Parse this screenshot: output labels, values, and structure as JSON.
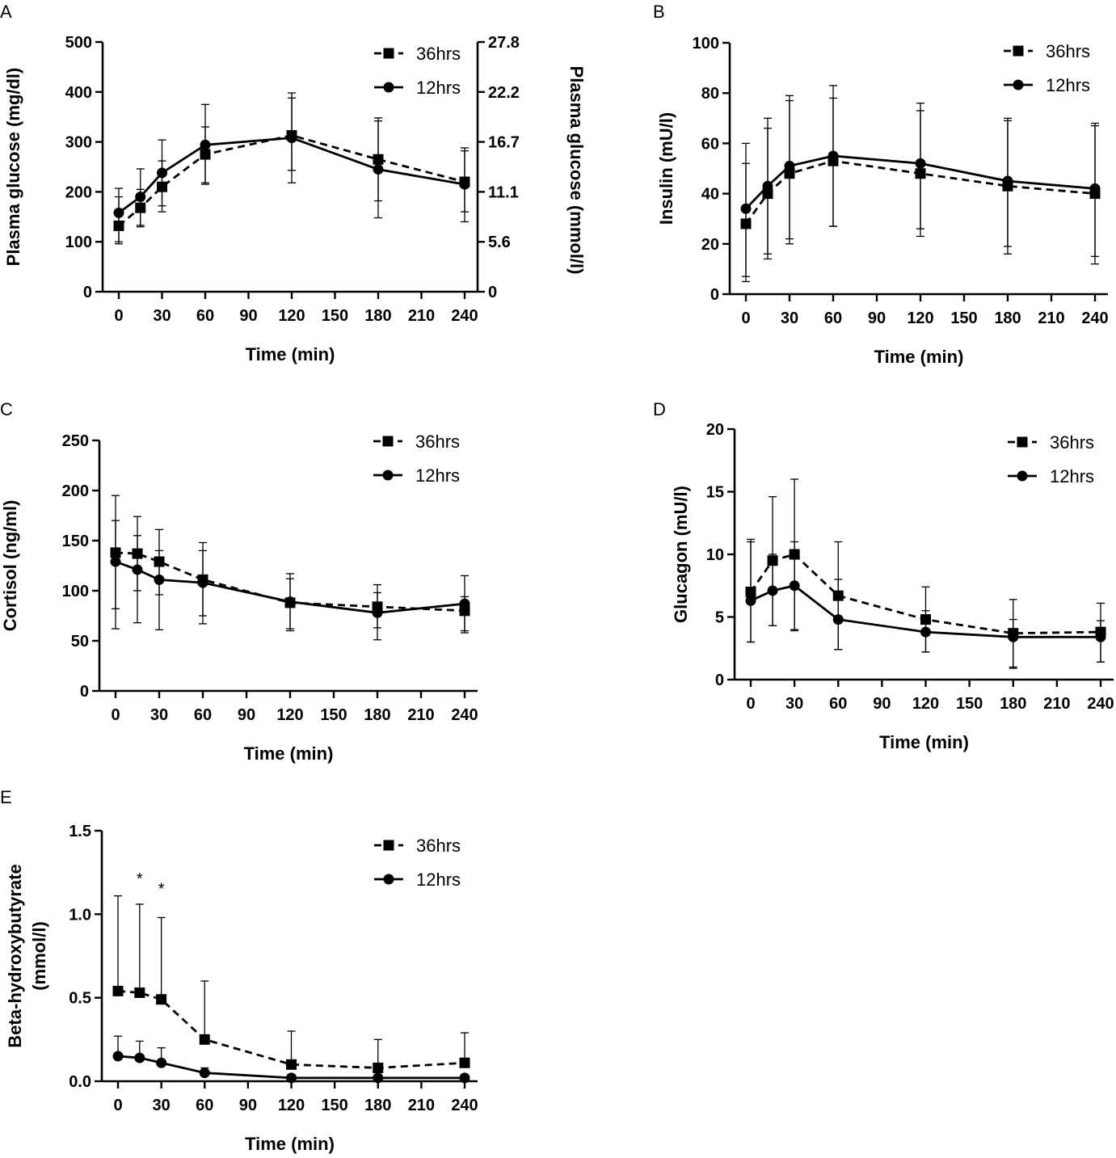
{
  "chart_data": [
    {
      "id": "A",
      "panel_label": "A",
      "type": "line",
      "xlabel": "Time (min)",
      "ylabel": "Plasma glucose (mg/dl)",
      "y2label": "Plasma glucose (mmol/l)",
      "xlim": [
        0,
        240
      ],
      "ylim": [
        0,
        500
      ],
      "xticks": [
        0,
        30,
        60,
        90,
        120,
        150,
        180,
        210,
        240
      ],
      "yticks": [
        0,
        100,
        200,
        300,
        400,
        500
      ],
      "y2ticks": [
        "0",
        "5.6",
        "11.1",
        "16.7",
        "22.2",
        "27.8"
      ],
      "legend_position": "top-right",
      "series": [
        {
          "name": "36hrs",
          "marker": "square",
          "line": "dashed",
          "x": [
            0,
            15,
            30,
            60,
            120,
            180,
            240
          ],
          "values": [
            132,
            168,
            210,
            275,
            313,
            265,
            220
          ],
          "err_upper": [
            190,
            205,
            262,
            330,
            398,
            348,
            288
          ],
          "err_lower": [
            100,
            130,
            160,
            215,
            218,
            148,
            140
          ]
        },
        {
          "name": "12hrs",
          "marker": "circle",
          "line": "solid",
          "x": [
            0,
            15,
            30,
            60,
            120,
            180,
            240
          ],
          "values": [
            158,
            190,
            238,
            294,
            308,
            245,
            215
          ],
          "err_upper": [
            207,
            246,
            304,
            375,
            388,
            342,
            282
          ],
          "err_lower": [
            96,
            133,
            172,
            218,
            243,
            182,
            160
          ]
        }
      ],
      "annotations": []
    },
    {
      "id": "B",
      "panel_label": "B",
      "type": "line",
      "xlabel": "Time (min)",
      "ylabel": "Insulin (mU/l)",
      "xlim": [
        0,
        240
      ],
      "ylim": [
        0,
        100
      ],
      "xticks": [
        0,
        30,
        60,
        90,
        120,
        150,
        180,
        210,
        240
      ],
      "yticks": [
        0,
        20,
        40,
        60,
        80,
        100
      ],
      "legend_position": "top-right",
      "series": [
        {
          "name": "36hrs",
          "marker": "square",
          "line": "dashed",
          "x": [
            0,
            15,
            30,
            60,
            120,
            180,
            240
          ],
          "values": [
            28,
            40,
            48,
            53,
            48,
            43,
            40
          ],
          "err_upper": [
            52,
            66,
            77,
            78,
            73,
            69,
            67
          ],
          "err_lower": [
            7,
            16,
            20,
            27,
            23,
            16,
            12
          ]
        },
        {
          "name": "12hrs",
          "marker": "circle",
          "line": "solid",
          "x": [
            0,
            15,
            30,
            60,
            120,
            180,
            240
          ],
          "values": [
            34,
            43,
            51,
            55,
            52,
            45,
            42
          ],
          "err_upper": [
            60,
            70,
            79,
            83,
            76,
            70,
            68
          ],
          "err_lower": [
            5,
            14,
            22,
            27,
            26,
            19,
            15
          ]
        }
      ],
      "annotations": []
    },
    {
      "id": "C",
      "panel_label": "C",
      "type": "line",
      "xlabel": "Time (min)",
      "ylabel": "Cortisol (ng/ml)",
      "xlim": [
        0,
        240
      ],
      "ylim": [
        0,
        250
      ],
      "xticks": [
        0,
        30,
        60,
        90,
        120,
        150,
        180,
        210,
        240
      ],
      "yticks": [
        0,
        50,
        100,
        150,
        200,
        250
      ],
      "legend_position": "top-right",
      "series": [
        {
          "name": "36hrs",
          "marker": "square",
          "line": "dashed",
          "x": [
            0,
            15,
            30,
            60,
            120,
            180,
            240
          ],
          "values": [
            138,
            137,
            129,
            111,
            88,
            84,
            80
          ],
          "err_upper": [
            195,
            174,
            161,
            148,
            117,
            106,
            94
          ],
          "err_lower": [
            82,
            100,
            96,
            75,
            60,
            63,
            58
          ]
        },
        {
          "name": "12hrs",
          "marker": "circle",
          "line": "solid",
          "x": [
            0,
            15,
            30,
            60,
            120,
            180,
            240
          ],
          "values": [
            129,
            121,
            111,
            108,
            89,
            78,
            87
          ],
          "err_upper": [
            170,
            155,
            140,
            140,
            112,
            98,
            115
          ],
          "err_lower": [
            62,
            68,
            61,
            67,
            62,
            51,
            60
          ]
        }
      ],
      "annotations": []
    },
    {
      "id": "D",
      "panel_label": "D",
      "type": "line",
      "xlabel": "Time (min)",
      "ylabel": "Glucagon (mU/l)",
      "xlim": [
        0,
        240
      ],
      "ylim": [
        0,
        20
      ],
      "xticks": [
        0,
        30,
        60,
        90,
        120,
        150,
        180,
        210,
        240
      ],
      "yticks": [
        0,
        5,
        10,
        15,
        20
      ],
      "legend_position": "top-right",
      "series": [
        {
          "name": "36hrs",
          "marker": "square",
          "line": "dashed",
          "x": [
            0,
            15,
            30,
            60,
            120,
            180,
            240
          ],
          "values": [
            7.0,
            9.5,
            10.0,
            6.7,
            4.8,
            3.7,
            3.8
          ],
          "err_upper": [
            11.2,
            14.6,
            16.0,
            11.0,
            7.4,
            6.4,
            6.1
          ],
          "err_lower": [
            3.0,
            4.3,
            3.9,
            2.4,
            2.2,
            0.9,
            1.4
          ]
        },
        {
          "name": "12hrs",
          "marker": "circle",
          "line": "solid",
          "x": [
            0,
            15,
            30,
            60,
            120,
            180,
            240
          ],
          "values": [
            6.3,
            7.1,
            7.5,
            4.8,
            3.8,
            3.4,
            3.4
          ],
          "err_upper": [
            11.0,
            10.0,
            11.0,
            8.0,
            5.5,
            4.8,
            4.7
          ],
          "err_lower": [
            3.0,
            4.3,
            4.0,
            2.4,
            2.2,
            1.0,
            1.4
          ]
        }
      ],
      "annotations": []
    },
    {
      "id": "E",
      "panel_label": "E",
      "type": "line",
      "xlabel": "Time (min)",
      "ylabel": "Beta-hydroxybutyrate (mmol/l)",
      "ylabel_lines": [
        "Beta-hydroxybutyrate",
        "(mmol/l)"
      ],
      "xlim": [
        0,
        240
      ],
      "ylim": [
        0,
        1.5
      ],
      "xticks": [
        0,
        30,
        60,
        90,
        120,
        150,
        180,
        210,
        240
      ],
      "yticks": [
        0,
        0.5,
        1.0,
        1.5
      ],
      "ytick_labels": [
        "0.0",
        "0.5",
        "1.0",
        "1.5"
      ],
      "legend_position": "top-right",
      "series": [
        {
          "name": "36hrs",
          "marker": "square",
          "line": "dashed",
          "x": [
            0,
            15,
            30,
            60,
            120,
            180,
            240
          ],
          "values": [
            0.54,
            0.53,
            0.49,
            0.25,
            0.1,
            0.08,
            0.11
          ],
          "err_upper": [
            1.11,
            1.06,
            0.98,
            0.6,
            0.3,
            0.25,
            0.29
          ],
          "err_lower": null
        },
        {
          "name": "12hrs",
          "marker": "circle",
          "line": "solid",
          "x": [
            0,
            15,
            30,
            60,
            120,
            180,
            240
          ],
          "values": [
            0.15,
            0.14,
            0.11,
            0.05,
            0.02,
            0.02,
            0.02
          ],
          "err_upper": [
            0.27,
            0.24,
            0.2,
            0.08,
            0.04,
            0.04,
            0.04
          ],
          "err_lower": null
        }
      ],
      "annotations": [
        {
          "text": "*",
          "x": 15,
          "y": 1.18
        },
        {
          "text": "*",
          "x": 30,
          "y": 1.12
        }
      ]
    }
  ]
}
